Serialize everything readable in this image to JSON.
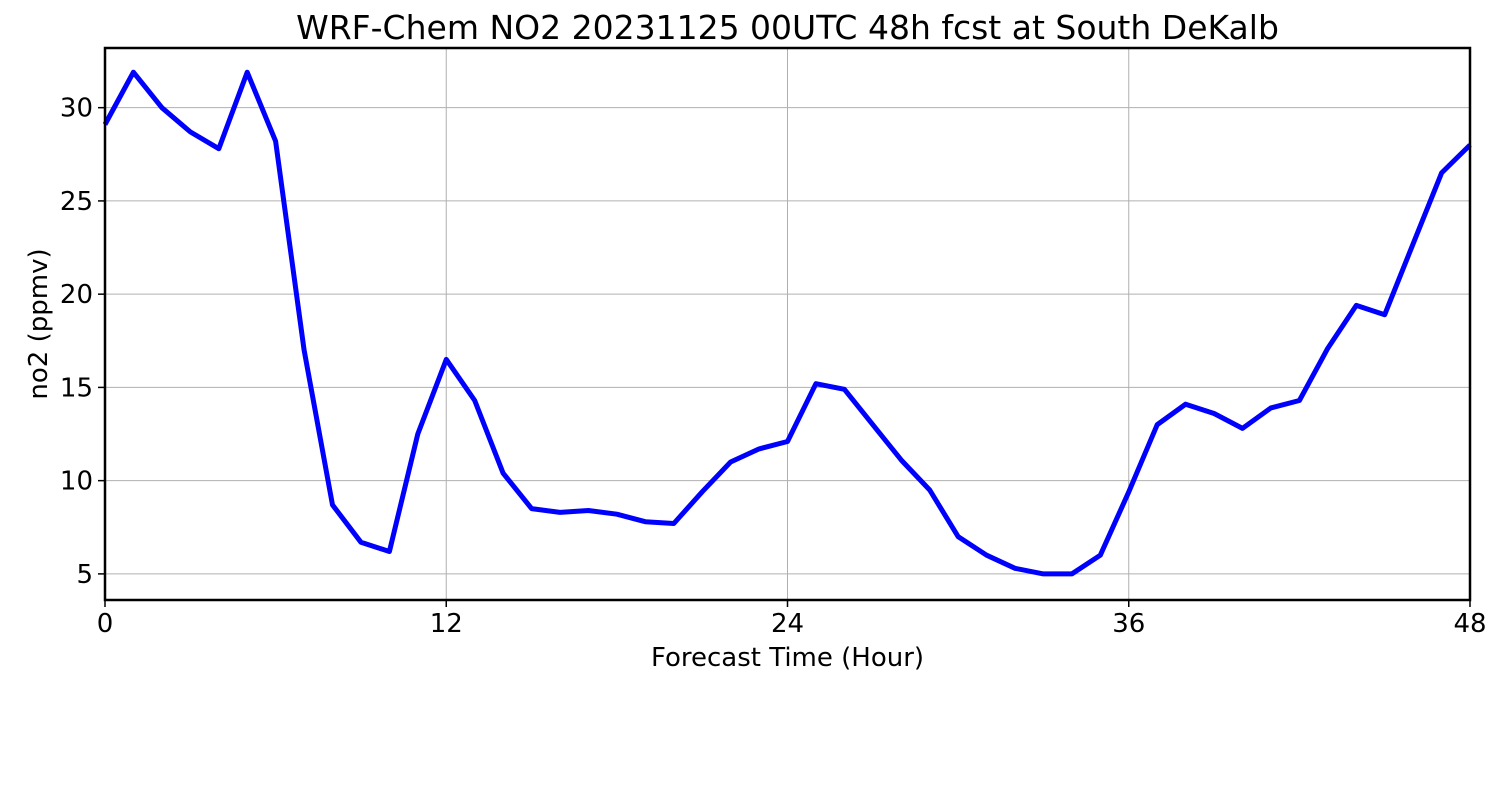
{
  "chart_data": {
    "type": "line",
    "title": "WRF-Chem NO2  20231125 00UTC 48h fcst at South DeKalb",
    "xlabel": "Forecast Time (Hour)",
    "ylabel": "no2  (ppmv)",
    "xlim": [
      0,
      48
    ],
    "ylim": [
      3.6,
      33.2
    ],
    "xticks": [
      0,
      12,
      24,
      36,
      48
    ],
    "yticks": [
      5,
      10,
      15,
      20,
      25,
      30
    ],
    "grid": true,
    "line_color": "#0000ff",
    "series": [
      {
        "x": [
          0,
          1,
          2,
          3,
          4,
          5,
          6,
          7,
          8,
          9,
          10,
          11,
          12,
          13,
          14,
          15,
          16,
          17,
          18,
          19,
          20,
          21,
          22,
          23,
          24,
          25,
          26,
          27,
          28,
          29,
          30,
          31,
          32,
          33,
          34,
          35,
          36,
          37,
          38,
          39,
          40,
          41,
          42,
          43,
          44,
          45,
          46,
          47,
          48
        ],
        "values": [
          29.1,
          31.9,
          30.0,
          28.7,
          27.8,
          31.9,
          28.2,
          17.0,
          8.7,
          6.7,
          6.2,
          12.5,
          16.5,
          14.3,
          10.4,
          8.5,
          8.3,
          8.4,
          8.2,
          7.8,
          7.7,
          9.4,
          11.0,
          11.7,
          12.1,
          15.2,
          14.9,
          13.0,
          11.1,
          9.5,
          7.0,
          6.0,
          5.3,
          5.0,
          5.0,
          6.0,
          9.4,
          13.0,
          14.1,
          13.6,
          12.8,
          13.9,
          14.3,
          17.1,
          19.4,
          18.9,
          22.7,
          26.5,
          28.0
        ]
      }
    ]
  }
}
